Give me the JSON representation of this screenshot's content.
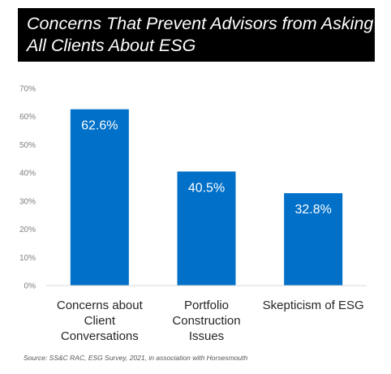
{
  "chart_data": {
    "type": "bar",
    "title_lines": [
      "Concerns That Prevent Advisors from Asking",
      "All Clients About ESG"
    ],
    "categories": [
      [
        "Concerns about",
        "Client",
        "Conversations"
      ],
      [
        "Portfolio",
        "Construction",
        "Issues"
      ],
      [
        "Skepticism of ESG"
      ]
    ],
    "values": [
      62.6,
      40.5,
      32.8
    ],
    "data_labels": [
      "62.6%",
      "40.5%",
      "32.8%"
    ],
    "ylim": [
      0,
      70
    ],
    "yticks": [
      0,
      10,
      20,
      30,
      40,
      50,
      60,
      70
    ],
    "ytick_labels": [
      "0%",
      "10%",
      "20%",
      "30%",
      "40%",
      "50%",
      "60%",
      "70%"
    ],
    "bar_color": "#0070C8",
    "grid": false,
    "source": "Source: SS&C RAC, ESG Survey, 2021, in association with Horsesmouth"
  }
}
